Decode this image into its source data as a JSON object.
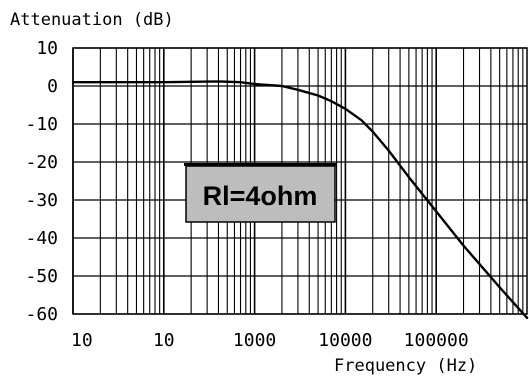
{
  "chart_data": {
    "type": "line",
    "title": "",
    "ylabel": "Attenuation (dB)",
    "xlabel": "Frequency (Hz)",
    "ylim": [
      -60,
      10
    ],
    "yticks": [
      10,
      0,
      -10,
      -20,
      -30,
      -40,
      -50,
      -60
    ],
    "ytick_labels": [
      "10",
      "0",
      "-10",
      "-20",
      "-30",
      "-40",
      "-50",
      "-60"
    ],
    "x_scale": "log",
    "xlim": [
      10,
      1000000
    ],
    "xtick_labels": [
      "10",
      "10",
      "1000",
      "10000",
      "100000"
    ],
    "grid": true,
    "line_color": "#000000",
    "annotation": {
      "text": "Rl=4ohm",
      "background": "#bdbdbd"
    },
    "series": [
      {
        "x": [
          10,
          30,
          100,
          200,
          400,
          700,
          1000,
          2000,
          3000,
          5000,
          7000,
          10000,
          15000,
          20000,
          30000,
          50000,
          100000,
          200000,
          500000,
          1000000
        ],
        "y": [
          1,
          1,
          1,
          1.1,
          1.2,
          1,
          0.5,
          0,
          -1,
          -2.5,
          -4,
          -6,
          -9,
          -12,
          -17,
          -24,
          -33,
          -42,
          -53,
          -61
        ]
      }
    ]
  }
}
